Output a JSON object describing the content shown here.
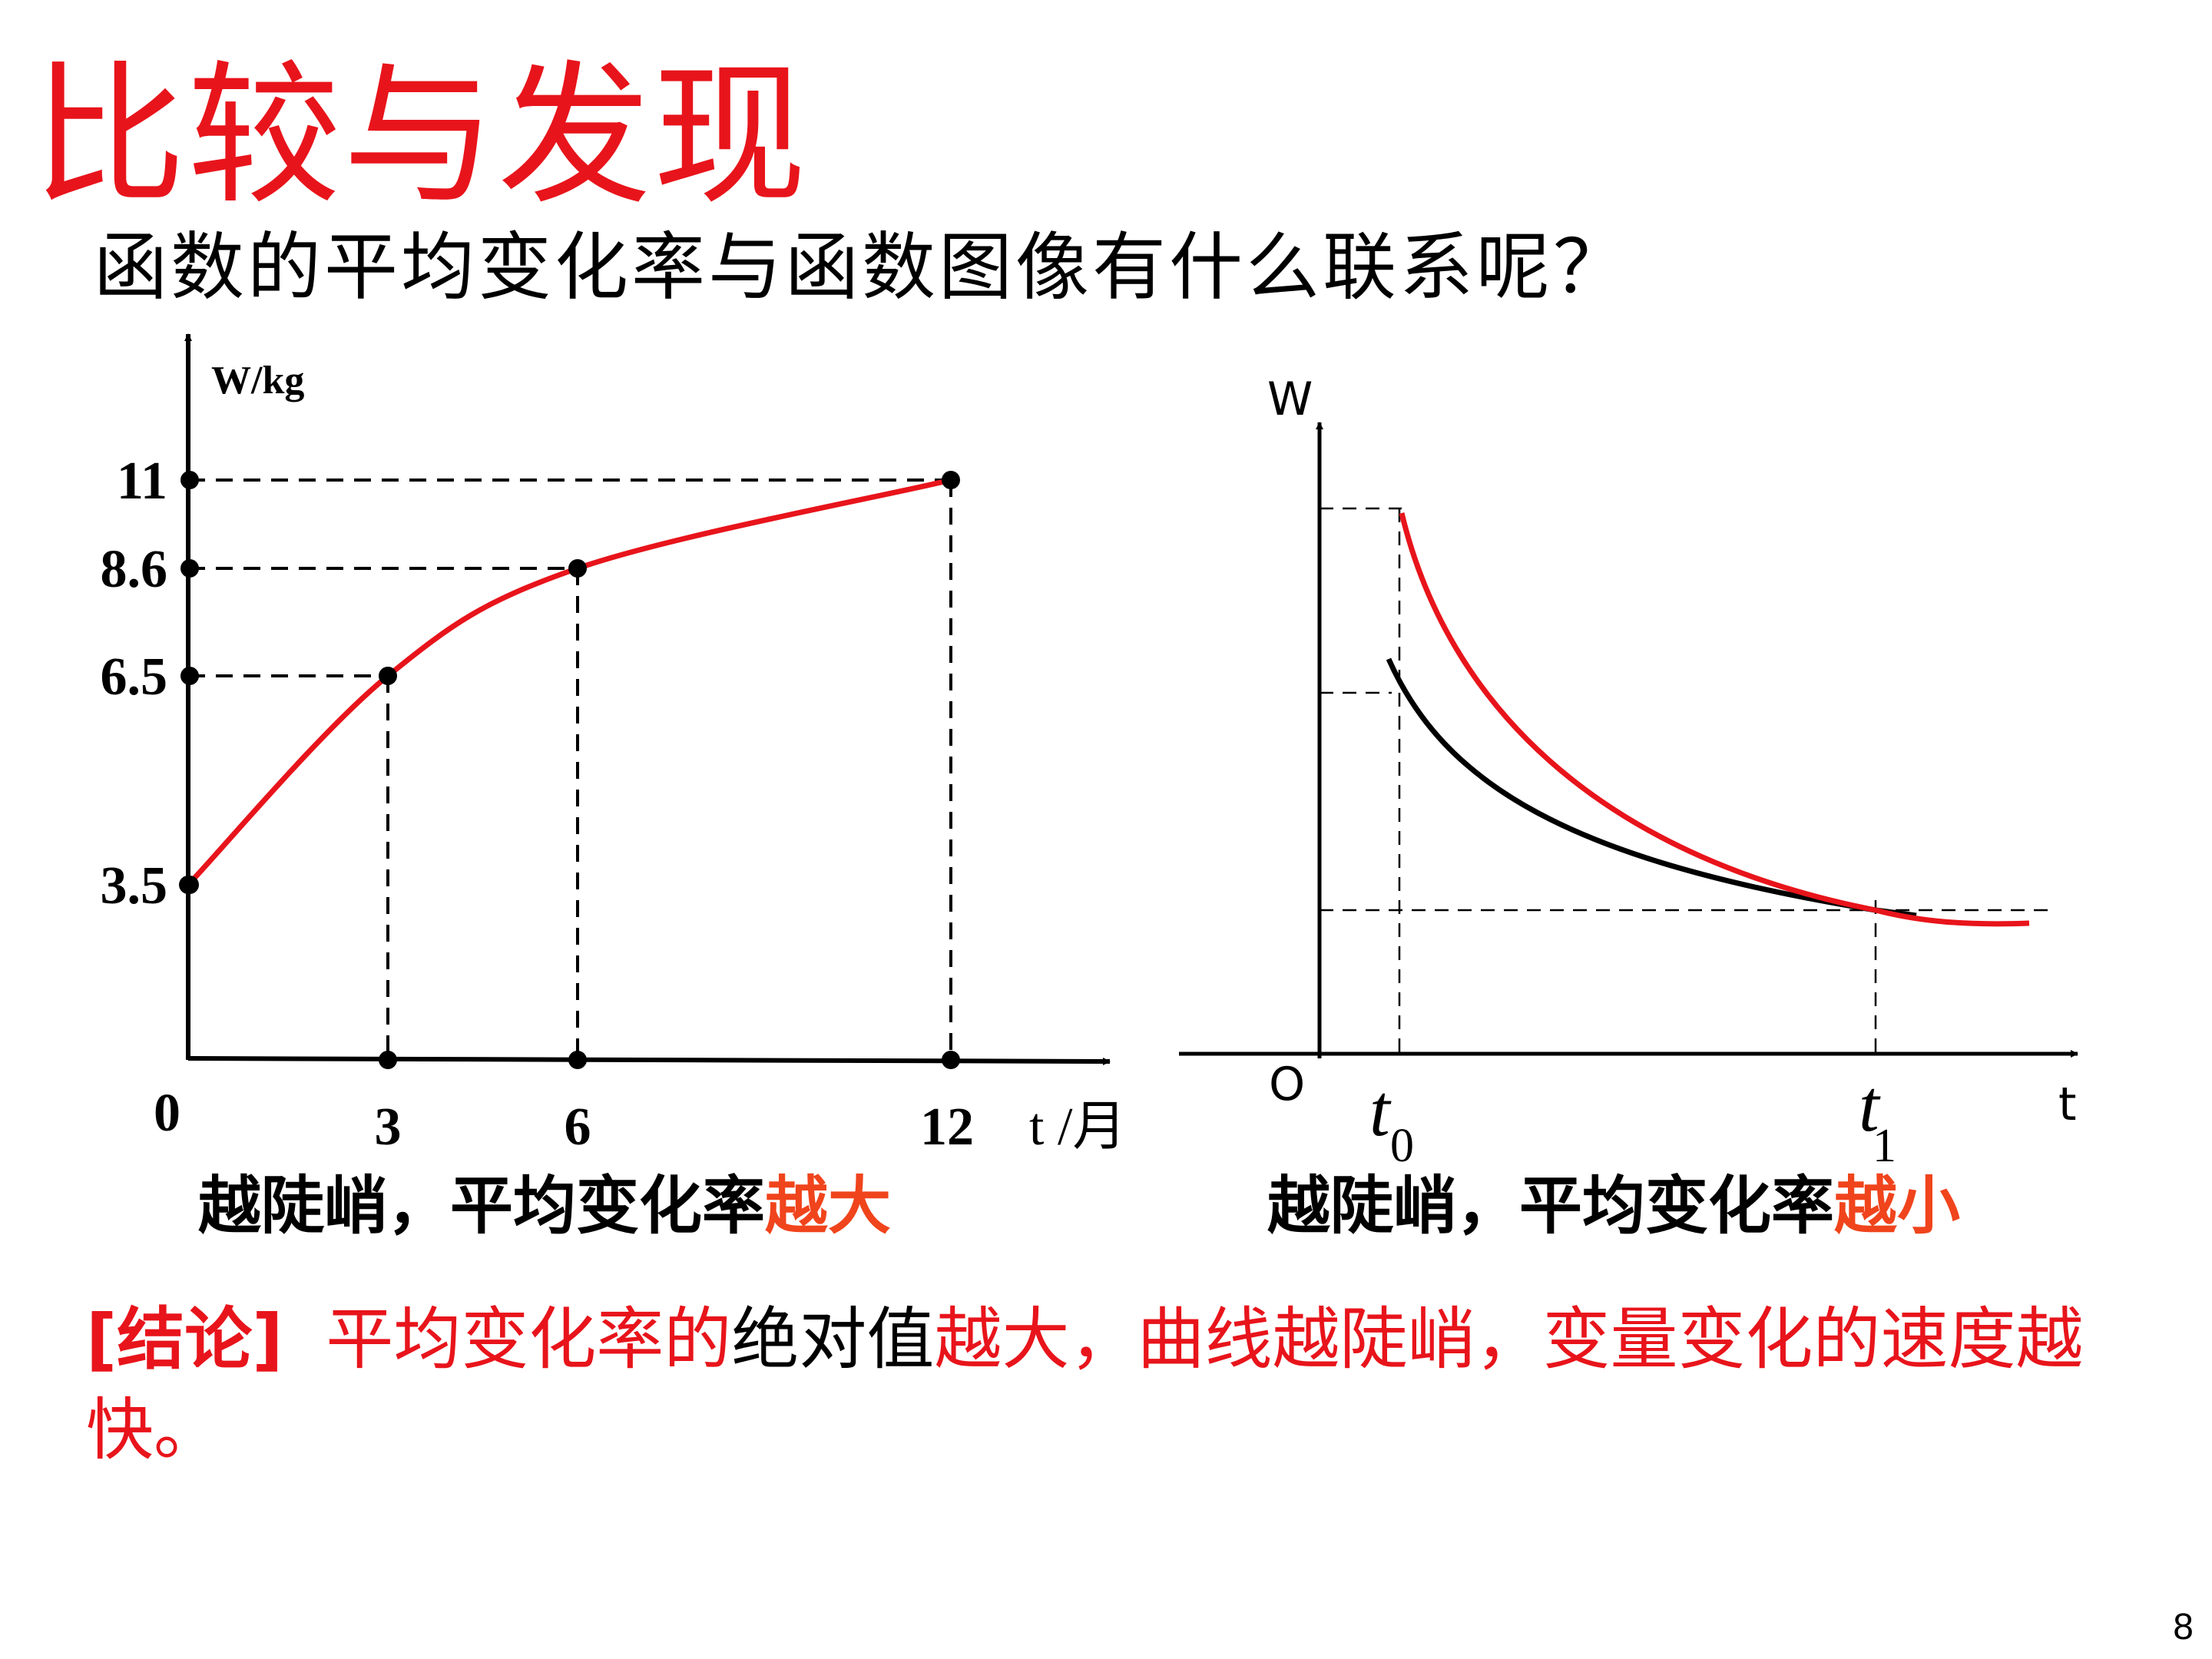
{
  "title": "比较与发现",
  "subtitle": "函数的平均变化率与函数图像有什么联系呢？",
  "chart_data": [
    {
      "type": "line",
      "xlabel": "t /月",
      "ylabel": "W/kg",
      "origin_label": "0",
      "x_ticks": [
        "3",
        "6",
        "12"
      ],
      "y_ticks": [
        "3.5",
        "6.5",
        "8.6",
        "11"
      ],
      "series": [
        {
          "color": "#e8141b",
          "x": [
            0,
            3,
            6,
            12
          ],
          "values": [
            3.5,
            6.5,
            8.6,
            11
          ]
        }
      ],
      "grid": false
    },
    {
      "type": "line",
      "xlabel": "t",
      "ylabel": "W",
      "origin_label": "O",
      "x_marks": [
        {
          "main": "t",
          "sub": "0"
        },
        {
          "main": "t",
          "sub": "1"
        }
      ],
      "series": [
        {
          "color": "#e8141b",
          "shape": "decreasing, steeper"
        },
        {
          "color": "#000000",
          "shape": "decreasing, less steep"
        }
      ],
      "grid": false
    }
  ],
  "captions": {
    "left": {
      "text": "越陡峭，平均变化率",
      "highlight": "越大"
    },
    "right": {
      "text": "越陡峭，平均变化率",
      "highlight": "越小"
    }
  },
  "conclusion": {
    "tag": "[结论]",
    "part1": "平均变化率的",
    "part2": "绝对值",
    "part3": "越大，曲线越陡峭，变量变化的速度越快。"
  },
  "page_number": "8",
  "colors": {
    "title": "#e8141b",
    "highlight": "#f0441c"
  }
}
